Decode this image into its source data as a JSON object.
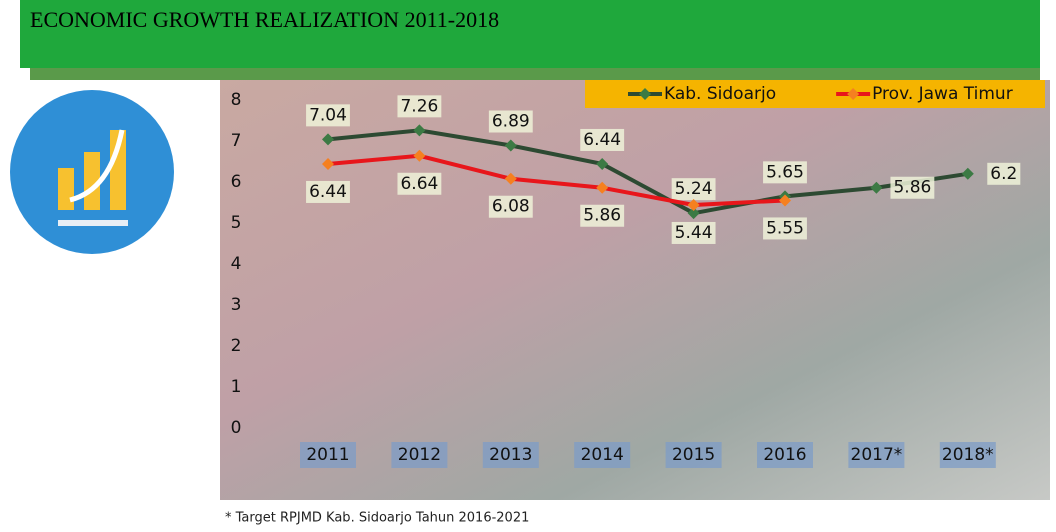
{
  "chart_data": {
    "type": "line",
    "title": "ECONOMIC GROWTH REALIZATION 2011-2018",
    "footnote": "* Target RPJMD Kab. Sidoarjo Tahun 2016-2021",
    "categories": [
      "2011",
      "2012",
      "2013",
      "2014",
      "2015",
      "2016",
      "2017*",
      "2018*"
    ],
    "series": [
      {
        "name": "Kab. Sidoarjo",
        "color": "#2d4a32",
        "values": [
          7.04,
          7.26,
          6.89,
          6.44,
          5.24,
          5.65,
          5.86,
          6.2
        ]
      },
      {
        "name": "Prov. Jawa Timur",
        "color": "#e8161b",
        "values": [
          6.44,
          6.64,
          6.08,
          5.86,
          5.44,
          5.55,
          null,
          null
        ]
      }
    ],
    "ylim": [
      0,
      8
    ],
    "yticks": [
      0,
      1,
      2,
      3,
      4,
      5,
      6,
      7,
      8
    ],
    "grid": false,
    "legend": "top-right"
  }
}
